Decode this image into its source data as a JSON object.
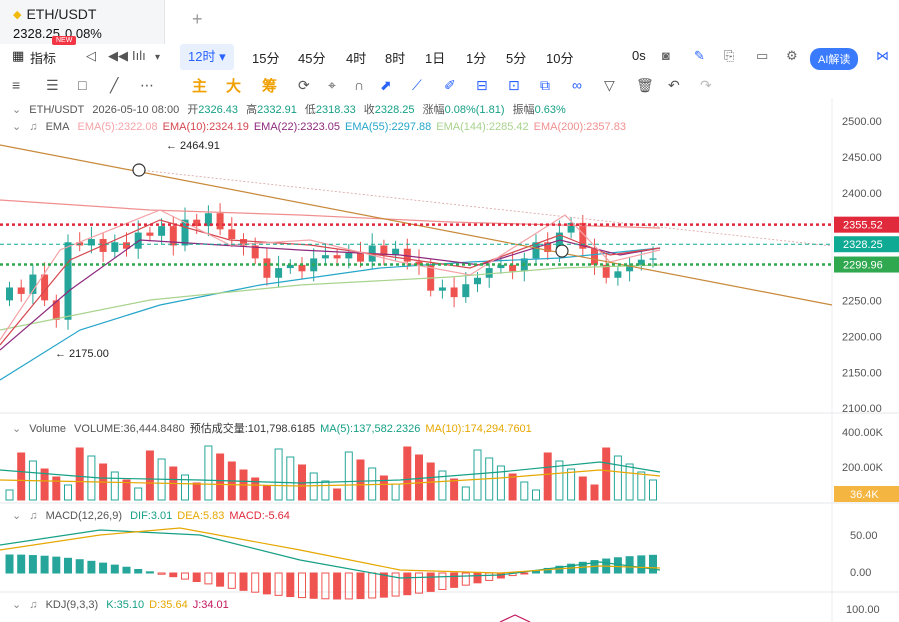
{
  "tab": {
    "symbol": "ETH/USDT",
    "price": "2328.25",
    "change": "0.08%",
    "badge": "NEW"
  },
  "toolbar": {
    "indicators": "指标",
    "active_interval": "12时",
    "intervals": [
      "15分",
      "45分",
      "4时",
      "8时",
      "1日",
      "1分",
      "5分",
      "10分"
    ],
    "zero_s": "0s",
    "ai": "AI解读"
  },
  "drawbar": {
    "main": "主",
    "big": "大",
    "chips": "筹"
  },
  "ohlc": {
    "symbol": "ETH/USDT",
    "date": "2026-05-10 08:00",
    "open_label": "开",
    "open": "2326.43",
    "high_label": "高",
    "high": "2332.91",
    "low_label": "低",
    "low": "2318.33",
    "close_label": "收",
    "close": "2328.25",
    "chg_label": "涨幅",
    "chg": "0.08%(1.81)",
    "amp_label": "振幅",
    "amp": "0.63%"
  },
  "ema": {
    "title": "EMA",
    "items": [
      {
        "text": "EMA(5):2322.08",
        "color": "#f4a3a8"
      },
      {
        "text": "EMA(10):2324.19",
        "color": "#d5484f"
      },
      {
        "text": "EMA(22):2323.05",
        "color": "#8e2a7d"
      },
      {
        "text": "EMA(55):2297.88",
        "color": "#26a6c9"
      },
      {
        "text": "EMA(144):2285.42",
        "color": "#a8d38d"
      },
      {
        "text": "EMA(200):2357.83",
        "color": "#f08f8f"
      }
    ]
  },
  "price_axis": {
    "ticks": [
      "2500.00",
      "2450.00",
      "2400.00",
      "2350.00",
      "2300.00",
      "2250.00",
      "2200.00",
      "2150.00",
      "2100.00"
    ]
  },
  "price_tags": [
    {
      "label": "2355.52",
      "value": 2355.52,
      "bg": "#e0293a"
    },
    {
      "label": "2328.25",
      "value": 2328.25,
      "bg": "#0faa94"
    },
    {
      "label": "2299.96",
      "value": 2299.96,
      "bg": "#2fa84f"
    }
  ],
  "annotations": {
    "high": "2464.91",
    "low": "2175.00"
  },
  "volume": {
    "title": "Volume",
    "items": [
      {
        "text": "VOLUME:36,444.8480",
        "color": "#555555"
      },
      {
        "text": "预估成交量:101,798.6185",
        "color": "#333333"
      },
      {
        "text": "MA(5):137,582.2326",
        "color": "#16a085"
      },
      {
        "text": "MA(10):174,294.7601",
        "color": "#e6a700"
      }
    ],
    "axis": [
      "400.00K",
      "200.00K"
    ],
    "tag": "36.4K"
  },
  "macd": {
    "title": "MACD(12,26,9)",
    "items": [
      {
        "text": "DIF:3.01",
        "color": "#16a085"
      },
      {
        "text": "DEA:5.83",
        "color": "#e6a700"
      },
      {
        "text": "MACD:-5.64",
        "color": "#e0293a"
      }
    ],
    "axis": [
      "50.00",
      "0.00"
    ]
  },
  "kdj": {
    "title": "KDJ(9,3,3)",
    "items": [
      {
        "text": "K:35.10",
        "color": "#16a085"
      },
      {
        "text": "D:35.64",
        "color": "#e6a700"
      },
      {
        "text": "J:34.01",
        "color": "#c2185b"
      }
    ],
    "axis": [
      "100.00"
    ]
  },
  "colors": {
    "up": "#26a69a",
    "down": "#ef5350",
    "accent": "#2962ff"
  }
}
